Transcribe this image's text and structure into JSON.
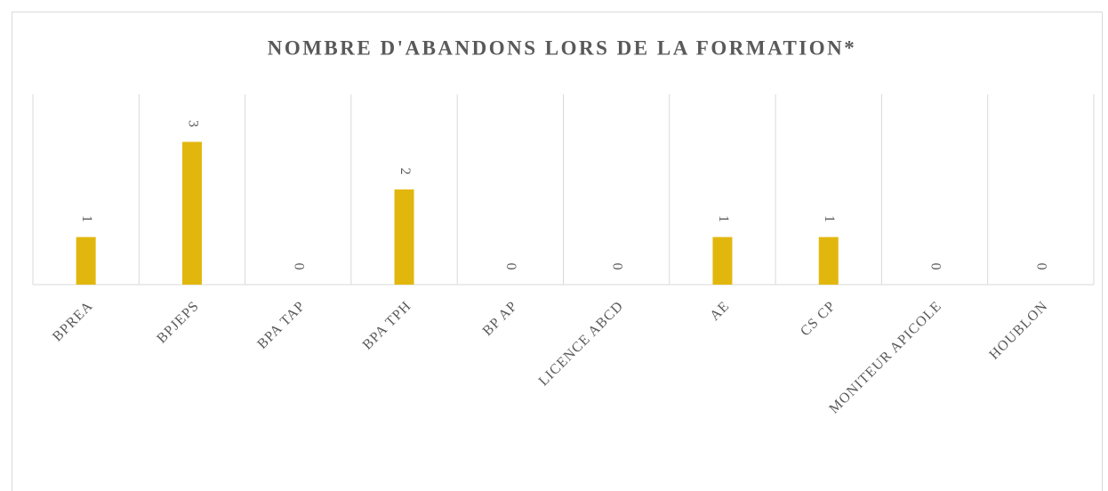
{
  "chart_data": {
    "type": "bar",
    "title": "NOMBRE D'ABANDONS LORS DE LA FORMATION*",
    "categories": [
      "BPREA",
      "BPJEPS",
      "BPA TAP",
      "BPA TPH",
      "BP AP",
      "LICENCE ABCD",
      "AE",
      "CS CP",
      "MONITEUR APICOLE",
      "HOUBLON"
    ],
    "values": [
      1,
      3,
      0,
      2,
      0,
      0,
      1,
      1,
      0,
      0
    ],
    "color": "#e2b70d",
    "ylim": [
      0,
      4
    ]
  }
}
